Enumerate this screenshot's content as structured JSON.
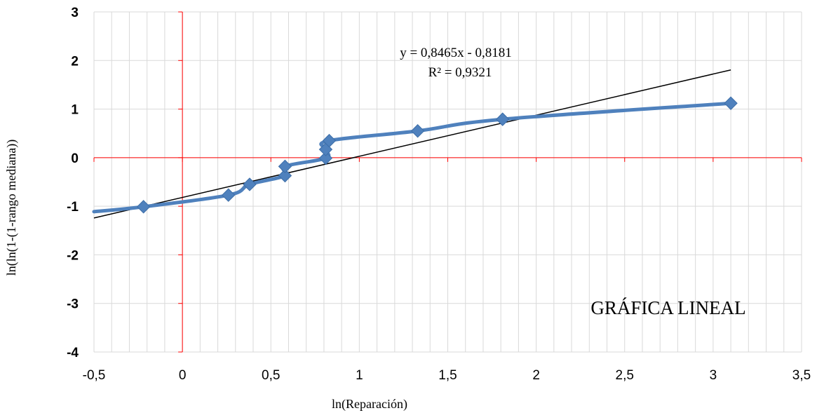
{
  "chart_data": {
    "type": "scatter",
    "xlabel": "ln(Reparación)",
    "ylabel": "ln(ln(1-(1-rango mediana))",
    "xlim": [
      -0.5,
      3.5
    ],
    "ylim": [
      -4,
      3
    ],
    "x_ticks": [
      "-0,5",
      "0",
      "0,5",
      "1",
      "1,5",
      "2",
      "2,5",
      "3",
      "3,5"
    ],
    "y_ticks": [
      "3",
      "2",
      "1",
      "0",
      "-1",
      "-2",
      "-3",
      "-4"
    ],
    "grid": true,
    "series": [
      {
        "color": "#4f81bd",
        "marker": "diamond",
        "smoothed_line": true,
        "line_extends_to_x": -0.5,
        "points": [
          [
            -0.22,
            -1.01
          ],
          [
            0.26,
            -0.77
          ],
          [
            0.38,
            -0.55
          ],
          [
            0.58,
            -0.37
          ],
          [
            0.58,
            -0.18
          ],
          [
            0.81,
            -0.01
          ],
          [
            0.81,
            0.17
          ],
          [
            0.83,
            0.35
          ],
          [
            1.33,
            0.55
          ],
          [
            1.81,
            0.79
          ],
          [
            3.1,
            1.12
          ]
        ]
      }
    ],
    "trendline": {
      "slope": 0.8465,
      "intercept": -0.8181,
      "x_range": [
        -0.5,
        3.1
      ],
      "color": "#000000",
      "equation": "y = 0,8465x - 0,8181",
      "r_squared": "R² = 0,9321"
    },
    "annotation": "GRÁFICA LINEAL",
    "zero_axes_color": "#ff0000"
  }
}
